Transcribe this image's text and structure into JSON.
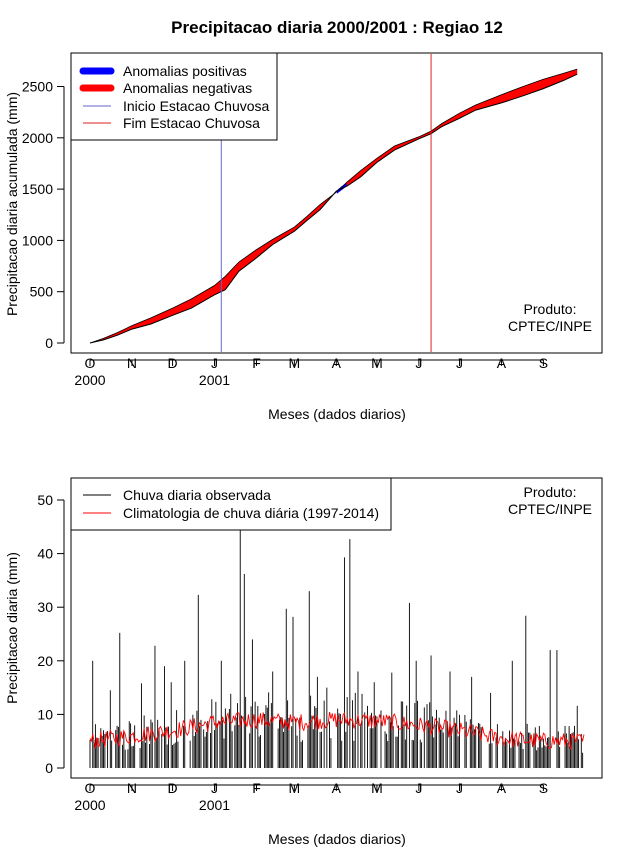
{
  "title": "Precipitacao diaria 2000/2001 : Regiao 12",
  "colors": {
    "positive": "#0000ff",
    "negative": "#ff0000",
    "start_line": "#6666cc",
    "end_line": "#dd2222",
    "observed": "#000000",
    "climatology": "#ff0000"
  },
  "chart_data": [
    {
      "type": "area",
      "ylabel": "Precipitacao diaria acumulada (mm)",
      "xlabel": "Meses (dados diarios)",
      "xlim": [
        0,
        365
      ],
      "ylim": [
        0,
        2700
      ],
      "yticks": [
        0,
        500,
        1000,
        1500,
        2000,
        2500
      ],
      "month_ticks": [
        0,
        31,
        61,
        92,
        123,
        151,
        182,
        212,
        243,
        273,
        304,
        335
      ],
      "month_labels": [
        "O",
        "N",
        "D",
        "J",
        "F",
        "M",
        "A",
        "M",
        "J",
        "J",
        "A",
        "S"
      ],
      "year_labels": [
        {
          "day": 0,
          "label": "2000"
        },
        {
          "day": 92,
          "label": "2001"
        }
      ],
      "legend": [
        {
          "label": "Anomalias positivas",
          "kind": "thick",
          "color_key": "positive"
        },
        {
          "label": "Anomalias negativas",
          "kind": "thick",
          "color_key": "negative"
        },
        {
          "label": "Inicio Estacao Chuvosa",
          "kind": "thin",
          "color_key": "start_line"
        },
        {
          "label": "Fim Estacao Chuvosa",
          "kind": "thin",
          "color_key": "end_line"
        }
      ],
      "credit": [
        "Produto:",
        "CPTEC/INPE"
      ],
      "rainy_season_start_day": 97,
      "rainy_season_end_day": 252,
      "x": [
        0,
        10,
        20,
        31,
        45,
        61,
        75,
        92,
        100,
        110,
        123,
        135,
        151,
        160,
        170,
        182,
        190,
        200,
        212,
        225,
        243,
        252,
        260,
        273,
        285,
        304,
        320,
        335,
        350,
        360
      ],
      "observed": [
        0,
        30,
        75,
        135,
        185,
        270,
        340,
        470,
        520,
        700,
        830,
        960,
        1090,
        1190,
        1300,
        1480,
        1530,
        1620,
        1760,
        1880,
        1990,
        2040,
        2110,
        2190,
        2270,
        2340,
        2410,
        2480,
        2560,
        2620
      ],
      "climatology": [
        0,
        45,
        100,
        170,
        245,
        340,
        430,
        560,
        650,
        790,
        910,
        1010,
        1130,
        1230,
        1350,
        1470,
        1570,
        1680,
        1800,
        1920,
        2010,
        2065,
        2140,
        2240,
        2320,
        2420,
        2500,
        2570,
        2630,
        2670
      ]
    },
    {
      "type": "bar",
      "ylabel": "Precipitacao diaria (mm)",
      "xlabel": "Meses (dados diarios)",
      "xlim": [
        0,
        365
      ],
      "ylim": [
        0,
        52
      ],
      "yticks": [
        0,
        10,
        20,
        30,
        40,
        50
      ],
      "month_ticks": [
        0,
        31,
        61,
        92,
        123,
        151,
        182,
        212,
        243,
        273,
        304,
        335
      ],
      "month_labels": [
        "O",
        "N",
        "D",
        "J",
        "F",
        "M",
        "A",
        "M",
        "J",
        "J",
        "A",
        "S"
      ],
      "year_labels": [
        {
          "day": 0,
          "label": "2000"
        },
        {
          "day": 92,
          "label": "2001"
        }
      ],
      "legend": [
        {
          "label": "Chuva diaria observada",
          "color_key": "observed"
        },
        {
          "label": "Climatologia de chuva diária (1997-2014)",
          "color_key": "climatology"
        }
      ],
      "credit": [
        "Produto:",
        "CPTEC/INPE"
      ],
      "peaks": [
        {
          "day": 2,
          "value": 20
        },
        {
          "day": 15,
          "value": 14.5
        },
        {
          "day": 22,
          "value": 25.2
        },
        {
          "day": 38,
          "value": 15.8
        },
        {
          "day": 48,
          "value": 22.8
        },
        {
          "day": 55,
          "value": 19
        },
        {
          "day": 60,
          "value": 16
        },
        {
          "day": 70,
          "value": 20
        },
        {
          "day": 80,
          "value": 32.3
        },
        {
          "day": 97,
          "value": 20
        },
        {
          "day": 111,
          "value": 49
        },
        {
          "day": 114,
          "value": 36.2
        },
        {
          "day": 120,
          "value": 24
        },
        {
          "day": 135,
          "value": 18
        },
        {
          "day": 145,
          "value": 29.7
        },
        {
          "day": 150,
          "value": 28.2
        },
        {
          "day": 162,
          "value": 33
        },
        {
          "day": 168,
          "value": 17
        },
        {
          "day": 175,
          "value": 15
        },
        {
          "day": 188,
          "value": 39.3
        },
        {
          "day": 192,
          "value": 42.7
        },
        {
          "day": 198,
          "value": 18
        },
        {
          "day": 210,
          "value": 16
        },
        {
          "day": 223,
          "value": 17.8
        },
        {
          "day": 236,
          "value": 30.8
        },
        {
          "day": 241,
          "value": 20
        },
        {
          "day": 252,
          "value": 21
        },
        {
          "day": 266,
          "value": 18
        },
        {
          "day": 282,
          "value": 17
        },
        {
          "day": 296,
          "value": 14
        },
        {
          "day": 312,
          "value": 20
        },
        {
          "day": 322,
          "value": 28.4
        },
        {
          "day": 340,
          "value": 22
        },
        {
          "day": 345,
          "value": 22
        },
        {
          "day": 360,
          "value": 11.6
        }
      ],
      "climatology_profile": [
        {
          "day": 0,
          "value": 5
        },
        {
          "day": 31,
          "value": 6
        },
        {
          "day": 61,
          "value": 7
        },
        {
          "day": 92,
          "value": 8.5
        },
        {
          "day": 123,
          "value": 9
        },
        {
          "day": 151,
          "value": 8.5
        },
        {
          "day": 182,
          "value": 9
        },
        {
          "day": 212,
          "value": 8.8
        },
        {
          "day": 243,
          "value": 8
        },
        {
          "day": 273,
          "value": 7
        },
        {
          "day": 304,
          "value": 5.5
        },
        {
          "day": 335,
          "value": 5
        },
        {
          "day": 365,
          "value": 5
        }
      ]
    }
  ]
}
